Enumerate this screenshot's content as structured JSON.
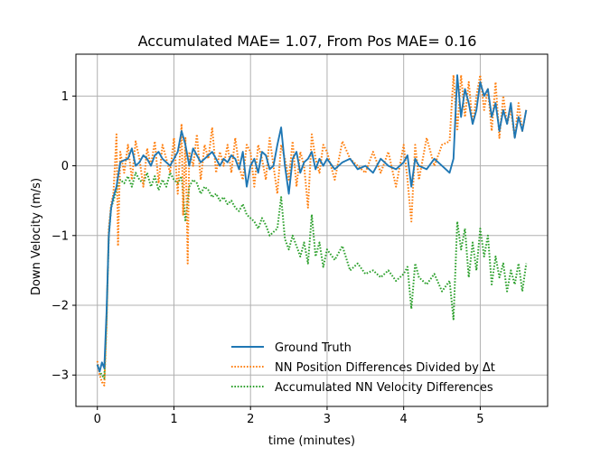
{
  "chart_data": {
    "type": "line",
    "title": "Accumulated MAE= 1.07, From Pos MAE= 0.16",
    "xlabel": "time (minutes)",
    "ylabel": "Down Velocity (m/s)",
    "xlim": [
      -0.28,
      5.88
    ],
    "ylim": [
      -3.45,
      1.6
    ],
    "xticks": [
      0,
      1,
      2,
      3,
      4,
      5
    ],
    "yticks": [
      -3,
      -2,
      -1,
      0,
      1
    ],
    "xtick_labels": [
      "0",
      "1",
      "2",
      "3",
      "4",
      "5"
    ],
    "ytick_labels": [
      "−3",
      "−2",
      "−1",
      "0",
      "1"
    ],
    "grid": true,
    "legend_position": "lower-center",
    "series": [
      {
        "name": "Ground Truth",
        "color": "#1f77b4",
        "style": "solid",
        "x": [
          0.0,
          0.03,
          0.06,
          0.09,
          0.12,
          0.15,
          0.18,
          0.21,
          0.25,
          0.3,
          0.35,
          0.4,
          0.45,
          0.5,
          0.55,
          0.6,
          0.65,
          0.7,
          0.75,
          0.8,
          0.85,
          0.9,
          0.95,
          1.0,
          1.05,
          1.1,
          1.15,
          1.2,
          1.25,
          1.3,
          1.35,
          1.4,
          1.45,
          1.5,
          1.55,
          1.6,
          1.65,
          1.7,
          1.75,
          1.8,
          1.85,
          1.9,
          1.95,
          2.0,
          2.05,
          2.1,
          2.15,
          2.2,
          2.25,
          2.3,
          2.35,
          2.4,
          2.45,
          2.5,
          2.55,
          2.6,
          2.65,
          2.7,
          2.75,
          2.8,
          2.85,
          2.9,
          2.95,
          3.0,
          3.1,
          3.2,
          3.3,
          3.4,
          3.5,
          3.6,
          3.7,
          3.8,
          3.9,
          4.0,
          4.05,
          4.1,
          4.15,
          4.2,
          4.3,
          4.4,
          4.5,
          4.6,
          4.65,
          4.7,
          4.75,
          4.8,
          4.85,
          4.9,
          4.95,
          5.0,
          5.05,
          5.1,
          5.15,
          5.2,
          5.25,
          5.3,
          5.35,
          5.4,
          5.45,
          5.5,
          5.55,
          5.6
        ],
        "values": [
          -2.85,
          -2.95,
          -2.82,
          -2.9,
          -2.1,
          -1.0,
          -0.6,
          -0.45,
          -0.3,
          0.05,
          0.08,
          0.1,
          0.25,
          0.0,
          0.05,
          0.15,
          0.1,
          0.0,
          0.15,
          0.2,
          0.1,
          0.05,
          0.0,
          0.1,
          0.2,
          0.5,
          0.3,
          0.0,
          0.25,
          0.15,
          0.05,
          0.1,
          0.15,
          0.2,
          0.1,
          0.0,
          0.1,
          0.05,
          0.15,
          0.1,
          -0.05,
          0.2,
          -0.3,
          0.0,
          0.1,
          -0.1,
          0.2,
          0.15,
          -0.05,
          0.0,
          0.3,
          0.55,
          0.0,
          -0.4,
          0.1,
          0.2,
          -0.1,
          0.05,
          0.1,
          0.2,
          -0.05,
          0.1,
          0.0,
          0.1,
          -0.05,
          0.05,
          0.1,
          -0.05,
          0.0,
          -0.1,
          0.1,
          0.0,
          -0.05,
          0.05,
          0.15,
          -0.3,
          0.1,
          0.0,
          -0.05,
          0.1,
          0.0,
          -0.1,
          0.1,
          1.3,
          0.7,
          1.1,
          0.9,
          0.6,
          0.8,
          1.2,
          1.0,
          1.1,
          0.7,
          0.9,
          0.5,
          0.8,
          0.6,
          0.9,
          0.4,
          0.7,
          0.5,
          0.8
        ]
      },
      {
        "name": "NN Position Differences Divided by Δt",
        "color": "#ff7f0e",
        "style": "dotted",
        "x": [
          0.0,
          0.03,
          0.06,
          0.09,
          0.12,
          0.15,
          0.18,
          0.21,
          0.25,
          0.27,
          0.3,
          0.35,
          0.4,
          0.45,
          0.5,
          0.55,
          0.6,
          0.65,
          0.7,
          0.75,
          0.8,
          0.85,
          0.9,
          0.95,
          1.0,
          1.05,
          1.1,
          1.12,
          1.15,
          1.18,
          1.2,
          1.25,
          1.3,
          1.35,
          1.4,
          1.45,
          1.5,
          1.55,
          1.6,
          1.65,
          1.7,
          1.75,
          1.8,
          1.85,
          1.9,
          1.95,
          2.0,
          2.05,
          2.1,
          2.15,
          2.2,
          2.25,
          2.3,
          2.35,
          2.4,
          2.45,
          2.5,
          2.55,
          2.6,
          2.65,
          2.7,
          2.75,
          2.8,
          2.85,
          2.9,
          2.95,
          3.0,
          3.1,
          3.2,
          3.3,
          3.4,
          3.5,
          3.6,
          3.7,
          3.8,
          3.9,
          4.0,
          4.05,
          4.1,
          4.15,
          4.2,
          4.3,
          4.4,
          4.5,
          4.6,
          4.65,
          4.7,
          4.75,
          4.8,
          4.85,
          4.9,
          4.95,
          5.0,
          5.05,
          5.1,
          5.15,
          5.2,
          5.25,
          5.3,
          5.35,
          5.4,
          5.45,
          5.5,
          5.55,
          5.6
        ],
        "values": [
          -2.8,
          -3.0,
          -3.1,
          -3.15,
          -2.3,
          -0.9,
          -0.55,
          -0.4,
          0.45,
          -1.15,
          0.2,
          -0.1,
          0.3,
          -0.2,
          0.35,
          0.1,
          -0.3,
          0.25,
          0.0,
          0.35,
          -0.25,
          0.3,
          0.1,
          -0.1,
          0.4,
          -0.4,
          0.6,
          -0.7,
          0.4,
          -1.4,
          0.2,
          0.0,
          0.45,
          -0.2,
          0.3,
          0.1,
          0.55,
          -0.1,
          0.2,
          0.0,
          0.3,
          -0.1,
          0.4,
          0.0,
          -0.2,
          0.3,
          0.2,
          -0.3,
          0.3,
          0.1,
          -0.2,
          0.4,
          0.0,
          -0.4,
          0.3,
          0.1,
          -0.2,
          0.35,
          -0.3,
          0.2,
          0.0,
          -0.6,
          0.45,
          0.1,
          -0.1,
          0.3,
          0.2,
          -0.2,
          0.35,
          0.1,
          0.0,
          -0.1,
          0.2,
          -0.1,
          0.2,
          -0.3,
          0.3,
          -0.2,
          -0.8,
          0.3,
          -0.2,
          0.4,
          0.0,
          0.3,
          0.35,
          1.3,
          0.5,
          1.3,
          0.7,
          1.2,
          0.6,
          1.0,
          1.3,
          0.8,
          1.1,
          0.5,
          1.2,
          0.4,
          1.0,
          0.6,
          0.8,
          0.4,
          0.9,
          0.5,
          0.8
        ]
      },
      {
        "name": "Accumulated NN Velocity Differences",
        "color": "#2ca02c",
        "style": "dotted",
        "x": [
          0.0,
          0.03,
          0.06,
          0.09,
          0.12,
          0.15,
          0.18,
          0.21,
          0.25,
          0.3,
          0.35,
          0.4,
          0.45,
          0.5,
          0.55,
          0.6,
          0.65,
          0.7,
          0.75,
          0.8,
          0.85,
          0.9,
          0.95,
          1.0,
          1.05,
          1.1,
          1.15,
          1.2,
          1.25,
          1.3,
          1.35,
          1.4,
          1.45,
          1.5,
          1.55,
          1.6,
          1.65,
          1.7,
          1.75,
          1.8,
          1.85,
          1.9,
          1.95,
          2.0,
          2.05,
          2.1,
          2.15,
          2.2,
          2.25,
          2.3,
          2.35,
          2.4,
          2.45,
          2.5,
          2.55,
          2.6,
          2.65,
          2.7,
          2.75,
          2.8,
          2.85,
          2.9,
          2.95,
          3.0,
          3.1,
          3.2,
          3.3,
          3.4,
          3.5,
          3.6,
          3.7,
          3.8,
          3.9,
          4.0,
          4.05,
          4.1,
          4.15,
          4.2,
          4.3,
          4.4,
          4.5,
          4.6,
          4.65,
          4.7,
          4.75,
          4.8,
          4.85,
          4.9,
          4.95,
          5.0,
          5.05,
          5.1,
          5.15,
          5.2,
          5.25,
          5.3,
          5.35,
          5.4,
          5.45,
          5.5,
          5.55,
          5.6
        ],
        "values": [
          -2.85,
          -2.95,
          -3.0,
          -3.05,
          -2.2,
          -1.0,
          -0.6,
          -0.5,
          -0.35,
          -0.2,
          -0.25,
          -0.15,
          -0.3,
          -0.1,
          -0.2,
          -0.25,
          -0.1,
          -0.3,
          -0.15,
          -0.35,
          -0.2,
          -0.3,
          -0.1,
          -0.2,
          -0.25,
          -0.15,
          -0.8,
          -0.3,
          -0.2,
          -0.25,
          -0.4,
          -0.3,
          -0.35,
          -0.45,
          -0.4,
          -0.5,
          -0.45,
          -0.55,
          -0.5,
          -0.6,
          -0.65,
          -0.55,
          -0.7,
          -0.75,
          -0.8,
          -0.9,
          -0.75,
          -0.85,
          -1.0,
          -0.95,
          -0.9,
          -0.45,
          -1.05,
          -1.2,
          -1.0,
          -1.15,
          -1.3,
          -1.1,
          -1.4,
          -0.7,
          -1.3,
          -1.1,
          -1.45,
          -1.2,
          -1.35,
          -1.15,
          -1.5,
          -1.4,
          -1.55,
          -1.5,
          -1.6,
          -1.5,
          -1.65,
          -1.55,
          -1.45,
          -2.05,
          -1.4,
          -1.6,
          -1.7,
          -1.55,
          -1.8,
          -1.65,
          -2.2,
          -0.8,
          -1.2,
          -0.9,
          -1.6,
          -1.1,
          -1.5,
          -0.9,
          -1.3,
          -1.0,
          -1.7,
          -1.3,
          -1.6,
          -1.4,
          -1.8,
          -1.5,
          -1.7,
          -1.4,
          -1.8,
          -1.4
        ]
      }
    ]
  }
}
